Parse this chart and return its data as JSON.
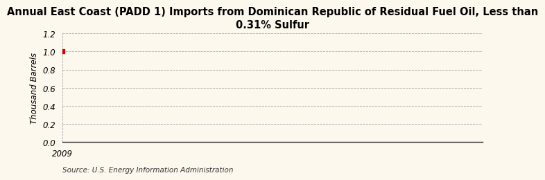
{
  "title": "Annual East Coast (PADD 1) Imports from Dominican Republic of Residual Fuel Oil, Less than\n0.31% Sulfur",
  "ylabel": "Thousand Barrels",
  "source_text": "Source: U.S. Energy Information Administration",
  "x_data": [
    2009
  ],
  "y_data": [
    1.0
  ],
  "marker_color": "#cc0000",
  "marker_style": "s",
  "marker_size": 4,
  "xlim": [
    2009,
    2015
  ],
  "ylim": [
    0.0,
    1.2
  ],
  "yticks": [
    0.0,
    0.2,
    0.4,
    0.6,
    0.8,
    1.0,
    1.2
  ],
  "xticks": [
    2009
  ],
  "background_color": "#fdf8ee",
  "plot_bg_color": "#fdf8ee",
  "grid_color": "#aaaaaa",
  "title_fontsize": 10.5,
  "label_fontsize": 8.5,
  "tick_fontsize": 8.5,
  "source_fontsize": 7.5
}
